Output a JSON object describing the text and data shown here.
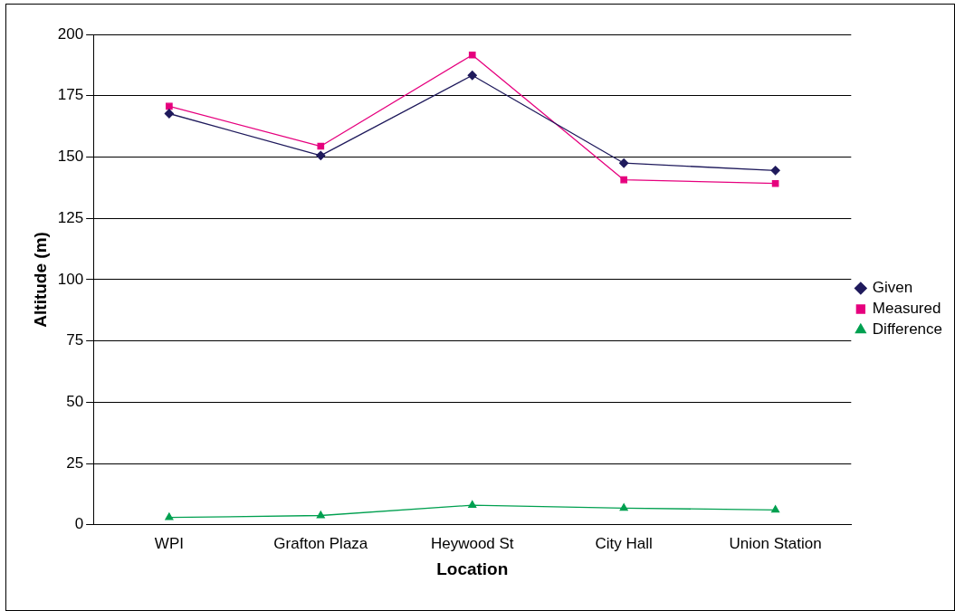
{
  "chart_data": {
    "type": "line",
    "xlabel": "Location",
    "ylabel": "Altitude (m)",
    "categories": [
      "WPI",
      "Grafton Plaza",
      "Heywood St",
      "City Hall",
      "Union Station"
    ],
    "series": [
      {
        "name": "Given",
        "color": "#1f1a5c",
        "marker": "diamond",
        "values": [
          167.7,
          150.6,
          183.3,
          147.5,
          144.5
        ]
      },
      {
        "name": "Measured",
        "color": "#e6007e",
        "marker": "square",
        "values": [
          170.7,
          154.4,
          191.6,
          140.7,
          139.2
        ]
      },
      {
        "name": "Difference",
        "color": "#00a050",
        "marker": "triangle",
        "values": [
          3,
          3.8,
          8,
          6.8,
          6.1
        ]
      }
    ],
    "ylim": [
      0,
      200
    ],
    "yticks": [
      0,
      25,
      50,
      75,
      100,
      125,
      150,
      175,
      200
    ],
    "grid": "y",
    "legend": "right",
    "line_style": "solid"
  }
}
